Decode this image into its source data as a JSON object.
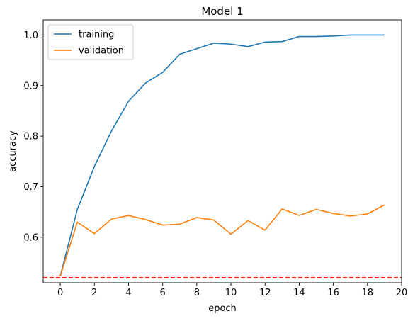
{
  "chart_data": {
    "type": "line",
    "title": "Model 1",
    "xlabel": "epoch",
    "ylabel": "accuracy",
    "xlim": [
      -1,
      20
    ],
    "ylim": [
      0.51,
      1.03
    ],
    "xticks": [
      0,
      2,
      4,
      6,
      8,
      10,
      12,
      14,
      16,
      18,
      20
    ],
    "yticks": [
      0.6,
      0.7,
      0.8,
      0.9,
      1.0
    ],
    "xtick_labels": [
      "0",
      "2",
      "4",
      "6",
      "8",
      "10",
      "12",
      "14",
      "16",
      "18",
      "20"
    ],
    "ytick_labels": [
      "0.6",
      "0.7",
      "0.8",
      "0.9",
      "1.0"
    ],
    "grid": false,
    "legend_position": "top-left",
    "x": [
      0,
      1,
      2,
      3,
      4,
      5,
      6,
      7,
      8,
      9,
      10,
      11,
      12,
      13,
      14,
      15,
      16,
      17,
      18,
      19
    ],
    "series": [
      {
        "name": "training",
        "color": "#1f77b4",
        "values": [
          0.523,
          0.655,
          0.74,
          0.81,
          0.869,
          0.905,
          0.926,
          0.962,
          0.973,
          0.984,
          0.982,
          0.977,
          0.986,
          0.987,
          0.997,
          0.997,
          0.998,
          1.0,
          1.0,
          1.0
        ]
      },
      {
        "name": "validation",
        "color": "#ff7f0e",
        "values": [
          0.523,
          0.63,
          0.607,
          0.636,
          0.643,
          0.635,
          0.624,
          0.626,
          0.639,
          0.634,
          0.606,
          0.633,
          0.614,
          0.656,
          0.643,
          0.655,
          0.647,
          0.642,
          0.646,
          0.664
        ]
      }
    ],
    "reference_line": {
      "y": 0.52,
      "color": "#ff0000",
      "style": "dashed"
    }
  }
}
